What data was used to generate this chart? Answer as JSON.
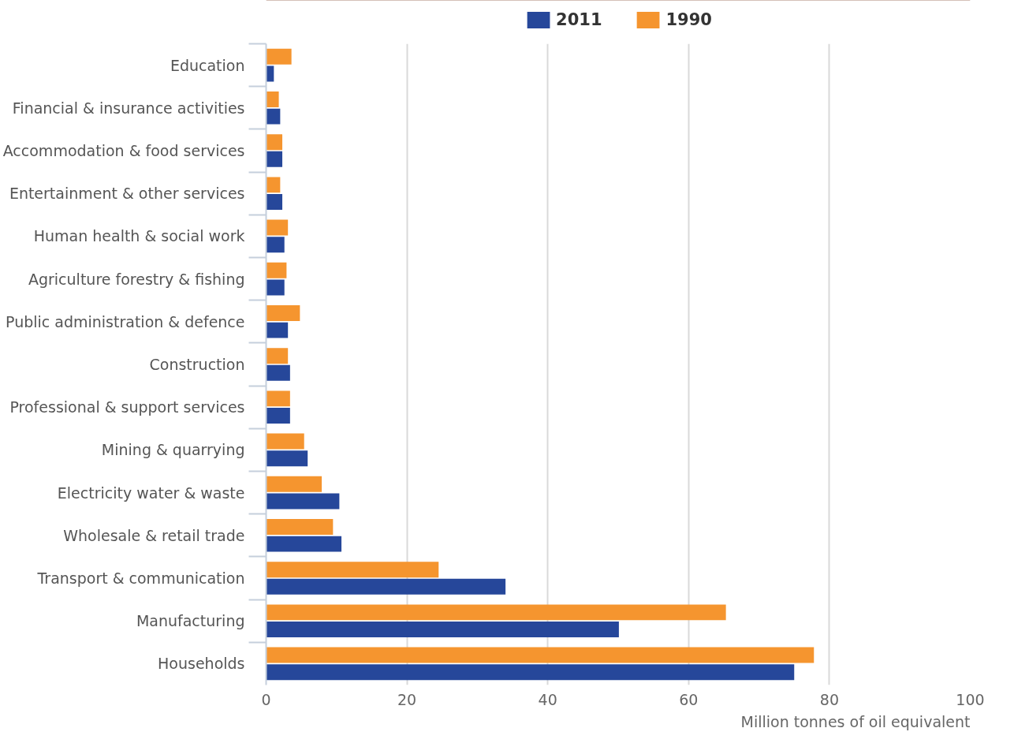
{
  "chart_data": {
    "type": "bar",
    "orientation": "horizontal",
    "xlabel": "Million tonnes of oil equivalent",
    "categories": [
      "Education",
      "Financial & insurance activities",
      "Accommodation & food services",
      "Entertainment & other services",
      "Human health & social work",
      "Agriculture forestry & fishing",
      "Public administration & defence",
      "Construction",
      "Professional & support services",
      "Mining & quarrying",
      "Electricity water & waste",
      "Wholesale & retail trade",
      "Transport & communication",
      "Manufacturing",
      "Households"
    ],
    "series": [
      {
        "name": "2011",
        "color": "#26479a",
        "values": [
          1.1,
          2.0,
          2.3,
          2.3,
          2.6,
          2.6,
          3.1,
          3.4,
          3.4,
          5.9,
          10.4,
          10.7,
          34.0,
          50.1,
          75.0
        ]
      },
      {
        "name": "1990",
        "color": "#f5952f",
        "values": [
          3.6,
          1.8,
          2.3,
          2.0,
          3.1,
          2.9,
          4.8,
          3.1,
          3.4,
          5.4,
          7.9,
          9.5,
          24.5,
          65.3,
          77.8
        ]
      }
    ],
    "xlim": [
      0,
      100
    ],
    "xticks": [
      0,
      20,
      40,
      60,
      80,
      100
    ],
    "grid": "x",
    "legend": "top"
  }
}
